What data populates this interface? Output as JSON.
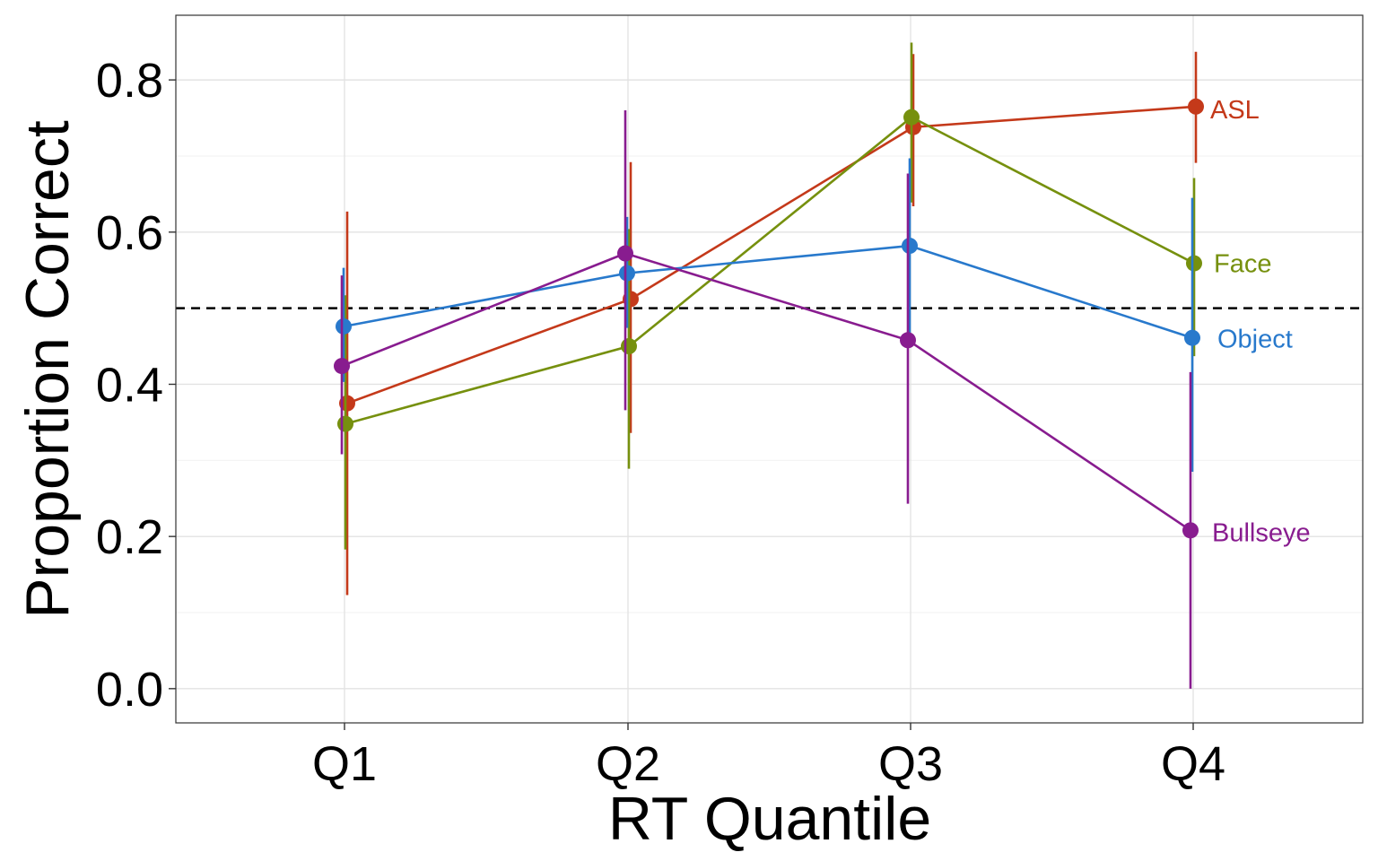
{
  "chart_data": {
    "type": "line",
    "xlabel": "RT Quantile",
    "ylabel": "Proportion Correct",
    "categories": [
      "Q1",
      "Q2",
      "Q3",
      "Q4"
    ],
    "ylim": [
      -0.045,
      0.885
    ],
    "yticks": [
      0.0,
      0.2,
      0.4,
      0.6,
      0.8
    ],
    "ytick_labels": [
      "0.0",
      "0.2",
      "0.4",
      "0.6",
      "0.8"
    ],
    "grid": true,
    "reference_line": {
      "y": 0.5,
      "style": "dashed",
      "color": "#000000"
    },
    "legend": "direct labels at right end of each series",
    "series": [
      {
        "name": "ASL",
        "color": "#C4391A",
        "values": [
          0.375,
          0.512,
          0.738,
          0.765
        ],
        "lower": [
          0.123,
          0.336,
          0.634,
          0.691
        ],
        "upper": [
          0.627,
          0.692,
          0.834,
          0.837
        ]
      },
      {
        "name": "Face",
        "color": "#76900E",
        "values": [
          0.348,
          0.45,
          0.751,
          0.559
        ],
        "lower": [
          0.183,
          0.289,
          0.639,
          0.437
        ],
        "upper": [
          0.517,
          0.604,
          0.849,
          0.671
        ]
      },
      {
        "name": "Object",
        "color": "#2879CC",
        "values": [
          0.476,
          0.546,
          0.582,
          0.461
        ],
        "lower": [
          0.403,
          0.474,
          0.467,
          0.285
        ],
        "upper": [
          0.553,
          0.62,
          0.697,
          0.645
        ]
      },
      {
        "name": "Bullseye",
        "color": "#881C8F",
        "values": [
          0.424,
          0.572,
          0.458,
          0.208
        ],
        "lower": [
          0.308,
          0.366,
          0.243,
          0.0
        ],
        "upper": [
          0.543,
          0.76,
          0.677,
          0.416
        ]
      }
    ]
  }
}
